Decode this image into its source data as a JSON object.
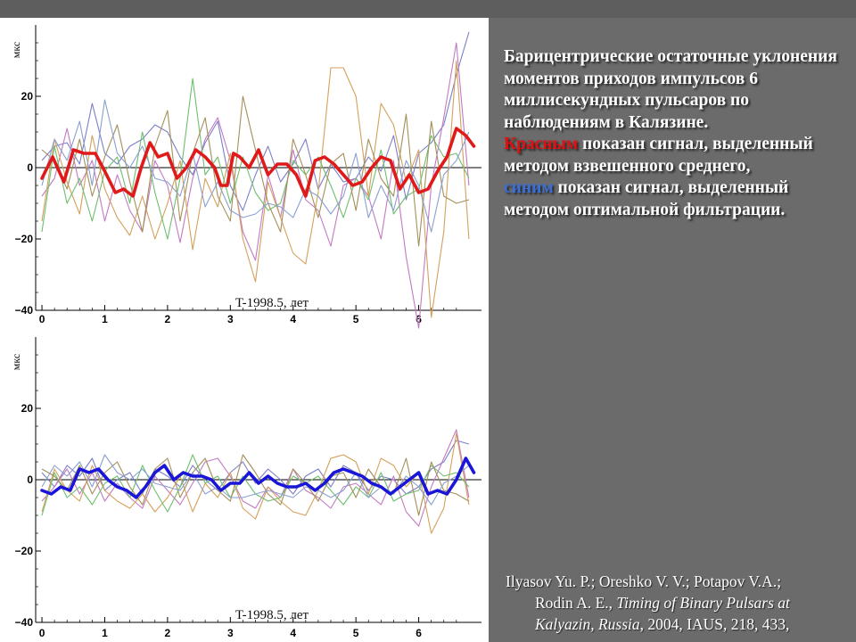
{
  "caption": {
    "line1": "Барицентрические остаточные уклонения моментов приходов импульсов 6 миллисекундных пульсаров по наблюдениям в Калязине.",
    "red_word": "Красным",
    "red_rest": " показан сигнал, выделенный методом взвешенного среднего,",
    "blue_word": "синим",
    "blue_rest": " показан сигнал, выделенный методом оптимальной фильтрации."
  },
  "reference": {
    "authors": "Ilyasov Yu. P.; Oreshko V. V.; Potapov V.A.;",
    "authors2": "Rodin A. E., ",
    "title": "Timing of Binary Pulsars at Kalyazin, Russia",
    "tail": ", 2004, IAUS, 218, 433,"
  },
  "colors": {
    "panel_bg": "#ffffff",
    "slide_bg": "#6b6b6b",
    "signal_red": "#e01a1a",
    "signal_blue": "#1a16d8",
    "pulsar_colors": [
      "#7b7fc8",
      "#c27ac2",
      "#d4a15a",
      "#6fbf6f",
      "#a38f5a",
      "#8aa0d0"
    ]
  },
  "chart_data": [
    {
      "type": "line",
      "ylabel": "мкс",
      "xlabel": "T-1998.5, лет",
      "xlim": [
        -0.1,
        7.0
      ],
      "ylim": [
        -40,
        40
      ],
      "xticks": [
        0,
        1,
        2,
        3,
        4,
        5,
        6
      ],
      "yticks": [
        -40,
        -20,
        0,
        20
      ],
      "grid": false,
      "signal": {
        "color": "red",
        "x": [
          0.0,
          0.17,
          0.35,
          0.5,
          0.67,
          0.85,
          1.0,
          1.17,
          1.3,
          1.45,
          1.58,
          1.72,
          1.85,
          2.0,
          2.15,
          2.3,
          2.45,
          2.6,
          2.75,
          2.85,
          2.95,
          3.05,
          3.15,
          3.3,
          3.45,
          3.6,
          3.75,
          3.9,
          4.05,
          4.2,
          4.35,
          4.5,
          4.65,
          4.8,
          4.95,
          5.1,
          5.25,
          5.4,
          5.55,
          5.7,
          5.85,
          6.0,
          6.15,
          6.3,
          6.45,
          6.6,
          6.75,
          6.88
        ],
        "values": [
          -3,
          3,
          -4,
          5,
          4,
          4,
          -1,
          -7,
          -6,
          -8,
          0,
          7,
          3,
          4,
          -3,
          0,
          5,
          3,
          0,
          -5,
          -5,
          4,
          3,
          0,
          5,
          -2,
          1,
          1,
          -2,
          -8,
          2,
          3,
          1,
          -2,
          -5,
          -4,
          0,
          3,
          2,
          -6,
          -2,
          -7,
          -6,
          -1,
          3,
          11,
          9,
          6
        ]
      },
      "series": [
        {
          "x": [
            0.0,
            0.2,
            0.4,
            0.6,
            0.8,
            1.0,
            1.2,
            1.4,
            1.6,
            1.8,
            2.0,
            2.2,
            2.4,
            2.6,
            2.8,
            3.0,
            3.2,
            3.4,
            3.6,
            3.8,
            4.0,
            4.2,
            4.4,
            4.6,
            4.8,
            5.0,
            5.2,
            5.4,
            5.6,
            5.8,
            6.0,
            6.2,
            6.4,
            6.6,
            6.8
          ],
          "values": [
            2,
            6,
            7,
            1,
            18,
            4,
            1,
            6,
            8,
            12,
            10,
            3,
            -2,
            7,
            13,
            -5,
            -12,
            -2,
            6,
            -4,
            1,
            8,
            -6,
            1,
            -4,
            -3,
            3,
            -1,
            9,
            -9,
            4,
            7,
            12,
            26,
            38
          ]
        },
        {
          "x": [
            0.0,
            0.2,
            0.4,
            0.6,
            0.8,
            1.0,
            1.2,
            1.4,
            1.6,
            1.8,
            2.0,
            2.2,
            2.4,
            2.6,
            2.8,
            3.0,
            3.2,
            3.4,
            3.6,
            3.8,
            4.0,
            4.2,
            4.4,
            4.6,
            4.8,
            5.0,
            5.2,
            5.4,
            5.6,
            5.8,
            6.0,
            6.2,
            6.4,
            6.6,
            6.8
          ],
          "values": [
            -8,
            -3,
            11,
            -5,
            2,
            -15,
            -2,
            -12,
            -18,
            2,
            -5,
            -21,
            -3,
            8,
            14,
            2,
            -18,
            -26,
            -2,
            -14,
            5,
            -9,
            -12,
            -22,
            -5,
            -3,
            -8,
            -20,
            2,
            -25,
            -45,
            -5,
            14,
            35,
            -5
          ]
        },
        {
          "x": [
            0.0,
            0.2,
            0.4,
            0.6,
            0.8,
            1.0,
            1.2,
            1.4,
            1.6,
            1.8,
            2.0,
            2.2,
            2.4,
            2.6,
            2.8,
            3.0,
            3.2,
            3.4,
            3.6,
            3.8,
            4.0,
            4.2,
            4.4,
            4.6,
            4.8,
            5.0,
            5.2,
            5.4,
            5.6,
            5.8,
            6.0,
            6.2,
            6.4,
            6.6,
            6.8
          ],
          "values": [
            -15,
            8,
            -4,
            -13,
            9,
            -6,
            -14,
            -19,
            -8,
            -20,
            -10,
            2,
            -23,
            -3,
            -11,
            4,
            -20,
            -32,
            -4,
            -14,
            -24,
            -27,
            -7,
            28,
            28,
            20,
            -8,
            18,
            12,
            -4,
            5,
            -42,
            -18,
            30,
            -20
          ]
        },
        {
          "x": [
            0.0,
            0.2,
            0.4,
            0.6,
            0.8,
            1.0,
            1.2,
            1.4,
            1.6,
            1.8,
            2.0,
            2.2,
            2.4,
            2.6,
            2.8,
            3.0,
            3.2,
            3.4,
            3.6,
            3.8,
            4.0,
            4.2,
            4.4,
            4.6,
            4.8,
            5.0,
            5.2,
            5.4,
            5.6,
            5.8,
            6.0,
            6.2,
            6.4,
            6.6,
            6.8
          ],
          "values": [
            -18,
            6,
            -10,
            -3,
            -15,
            -1,
            3,
            -10,
            10,
            -7,
            -20,
            -3,
            25,
            -2,
            3,
            -10,
            3,
            -7,
            -12,
            -10,
            2,
            -2,
            3,
            -5,
            -14,
            -3,
            -9,
            5,
            -13,
            -8,
            -6,
            9,
            3,
            4,
            -3
          ]
        },
        {
          "x": [
            0.0,
            0.2,
            0.4,
            0.6,
            0.8,
            1.0,
            1.2,
            1.4,
            1.6,
            1.8,
            2.0,
            2.2,
            2.4,
            2.6,
            2.8,
            3.0,
            3.2,
            3.4,
            3.6,
            3.8,
            4.0,
            4.2,
            4.4,
            4.6,
            4.8,
            5.0,
            5.2,
            5.4,
            5.6,
            5.8,
            6.0,
            6.2,
            6.4,
            6.6,
            6.8
          ],
          "values": [
            5,
            2,
            -6,
            8,
            -8,
            3,
            12,
            -4,
            -18,
            6,
            16,
            -15,
            4,
            14,
            -8,
            -15,
            20,
            5,
            -10,
            -18,
            8,
            -2,
            -14,
            1,
            4,
            -12,
            8,
            -3,
            -8,
            15,
            -22,
            13,
            -8,
            -10,
            -9
          ]
        },
        {
          "x": [
            0.0,
            0.2,
            0.4,
            0.6,
            0.8,
            1.0,
            1.2,
            1.4,
            1.6,
            1.8,
            2.0,
            2.2,
            2.4,
            2.6,
            2.8,
            3.0,
            3.2,
            3.4,
            3.6,
            3.8,
            4.0,
            4.2,
            4.4,
            4.6,
            4.8,
            5.0,
            5.2,
            5.4,
            5.6,
            5.8,
            6.0,
            6.2,
            6.4,
            6.6,
            6.8
          ],
          "values": [
            -5,
            8,
            2,
            13,
            -5,
            19,
            4,
            0,
            6,
            -3,
            -4,
            -8,
            4,
            -11,
            -4,
            -12,
            -14,
            -13,
            -10,
            -11,
            -14,
            -6,
            -8,
            -13,
            -8,
            4,
            -14,
            -5,
            -12,
            2,
            -5,
            -18,
            -2,
            2,
            10
          ]
        }
      ]
    },
    {
      "type": "line",
      "ylabel": "мкс",
      "xlabel": "T-1998.5, лет",
      "xlim": [
        -0.1,
        7.0
      ],
      "ylim": [
        -40,
        40
      ],
      "xticks": [
        0,
        1,
        2,
        3,
        4,
        5,
        6
      ],
      "yticks": [
        -40,
        -20,
        0,
        20
      ],
      "grid": false,
      "signal": {
        "color": "blue",
        "x": [
          0.0,
          0.15,
          0.3,
          0.45,
          0.6,
          0.75,
          0.9,
          1.05,
          1.2,
          1.35,
          1.5,
          1.65,
          1.8,
          1.95,
          2.1,
          2.25,
          2.4,
          2.55,
          2.7,
          2.85,
          3.0,
          3.15,
          3.3,
          3.45,
          3.6,
          3.75,
          3.9,
          4.05,
          4.2,
          4.35,
          4.5,
          4.65,
          4.8,
          4.95,
          5.1,
          5.25,
          5.4,
          5.55,
          5.7,
          5.85,
          6.0,
          6.15,
          6.3,
          6.45,
          6.6,
          6.75,
          6.88
        ],
        "values": [
          -3,
          -4,
          -2,
          -3,
          3,
          2,
          3,
          0,
          -2,
          -3,
          -5,
          -2,
          2,
          4,
          0,
          2,
          1,
          1,
          0,
          -3,
          -1,
          -1,
          2,
          -1,
          1,
          -1,
          -2,
          -2,
          -1,
          -3,
          -1,
          2,
          3,
          2,
          1,
          -1,
          -2,
          -4,
          -2,
          0,
          2,
          -4,
          -3,
          -4,
          0,
          6,
          2
        ]
      },
      "series": [
        {
          "x": [
            0.0,
            0.2,
            0.4,
            0.6,
            0.8,
            1.0,
            1.2,
            1.4,
            1.6,
            1.8,
            2.0,
            2.2,
            2.4,
            2.6,
            2.8,
            3.0,
            3.2,
            3.4,
            3.6,
            3.8,
            4.0,
            4.2,
            4.4,
            4.6,
            4.8,
            5.0,
            5.2,
            5.4,
            5.6,
            5.8,
            6.0,
            6.2,
            6.4,
            6.6,
            6.8
          ],
          "values": [
            2,
            -2,
            4,
            1,
            6,
            -3,
            0,
            2,
            -4,
            3,
            1,
            -2,
            4,
            0,
            -3,
            2,
            5,
            -1,
            3,
            0,
            -4,
            1,
            3,
            -2,
            4,
            2,
            -3,
            1,
            0,
            -4,
            -2,
            3,
            5,
            11,
            10
          ]
        },
        {
          "x": [
            0.0,
            0.2,
            0.4,
            0.6,
            0.8,
            1.0,
            1.2,
            1.4,
            1.6,
            1.8,
            2.0,
            2.2,
            2.4,
            2.6,
            2.8,
            3.0,
            3.2,
            3.4,
            3.6,
            3.8,
            4.0,
            4.2,
            4.4,
            4.6,
            4.8,
            5.0,
            5.2,
            5.4,
            5.6,
            5.8,
            6.0,
            6.2,
            6.4,
            6.6,
            6.8
          ],
          "values": [
            -6,
            -2,
            3,
            -4,
            2,
            -6,
            -1,
            -5,
            -8,
            1,
            -3,
            -7,
            -1,
            5,
            6,
            1,
            -6,
            -8,
            -2,
            -5,
            3,
            -3,
            -5,
            -8,
            -2,
            -1,
            -4,
            -7,
            1,
            -9,
            -13,
            -2,
            6,
            14,
            -5
          ]
        },
        {
          "x": [
            0.0,
            0.2,
            0.4,
            0.6,
            0.8,
            1.0,
            1.2,
            1.4,
            1.6,
            1.8,
            2.0,
            2.2,
            2.4,
            2.6,
            2.8,
            3.0,
            3.2,
            3.4,
            3.6,
            3.8,
            4.0,
            4.2,
            4.4,
            4.6,
            4.8,
            5.0,
            5.2,
            5.4,
            5.6,
            5.8,
            6.0,
            6.2,
            6.4,
            6.6,
            6.8
          ],
          "values": [
            -9,
            3,
            -3,
            -6,
            4,
            -3,
            -6,
            -8,
            -4,
            -9,
            -5,
            1,
            -9,
            -1,
            -5,
            2,
            -8,
            -11,
            -2,
            -6,
            -9,
            -10,
            -3,
            6,
            7,
            5,
            -4,
            6,
            4,
            -2,
            2,
            -15,
            -8,
            13,
            -7
          ]
        },
        {
          "x": [
            0.0,
            0.2,
            0.4,
            0.6,
            0.8,
            1.0,
            1.2,
            1.4,
            1.6,
            1.8,
            2.0,
            2.2,
            2.4,
            2.6,
            2.8,
            3.0,
            3.2,
            3.4,
            3.6,
            3.8,
            4.0,
            4.2,
            4.4,
            4.6,
            4.8,
            5.0,
            5.2,
            5.4,
            5.6,
            5.8,
            6.0,
            6.2,
            6.4,
            6.6,
            6.8
          ],
          "values": [
            -10,
            2,
            -5,
            -2,
            -7,
            -1,
            1,
            -5,
            4,
            -3,
            -9,
            -2,
            7,
            -1,
            1,
            -5,
            1,
            -4,
            -6,
            -5,
            1,
            -1,
            1,
            -3,
            -7,
            -2,
            -5,
            2,
            -6,
            -4,
            -3,
            4,
            1,
            2,
            -2
          ]
        },
        {
          "x": [
            0.0,
            0.2,
            0.4,
            0.6,
            0.8,
            1.0,
            1.2,
            1.4,
            1.6,
            1.8,
            2.0,
            2.2,
            2.4,
            2.6,
            2.8,
            3.0,
            3.2,
            3.4,
            3.6,
            3.8,
            4.0,
            4.2,
            4.4,
            4.6,
            4.8,
            5.0,
            5.2,
            5.4,
            5.6,
            5.8,
            6.0,
            6.2,
            6.4,
            6.6,
            6.8
          ],
          "values": [
            3,
            1,
            -3,
            4,
            -4,
            2,
            5,
            -2,
            -7,
            3,
            6,
            -5,
            2,
            6,
            -3,
            -6,
            7,
            2,
            -4,
            -7,
            3,
            -1,
            -6,
            1,
            2,
            -5,
            3,
            -2,
            -4,
            6,
            -10,
            5,
            -3,
            -4,
            -6
          ]
        },
        {
          "x": [
            0.0,
            0.2,
            0.4,
            0.6,
            0.8,
            1.0,
            1.2,
            1.4,
            1.6,
            1.8,
            2.0,
            2.2,
            2.4,
            2.6,
            2.8,
            3.0,
            3.2,
            3.4,
            3.6,
            3.8,
            4.0,
            4.2,
            4.4,
            4.6,
            4.8,
            5.0,
            5.2,
            5.4,
            5.6,
            5.8,
            6.0,
            6.2,
            6.4,
            6.6,
            6.8
          ],
          "values": [
            -2,
            4,
            1,
            5,
            -2,
            7,
            2,
            0,
            3,
            -1,
            -2,
            -3,
            2,
            -4,
            -2,
            -5,
            -5,
            -4,
            -3,
            -4,
            -5,
            -2,
            -3,
            -5,
            -3,
            2,
            -5,
            -2,
            -4,
            1,
            -2,
            -7,
            -1,
            1,
            4
          ]
        }
      ]
    }
  ]
}
